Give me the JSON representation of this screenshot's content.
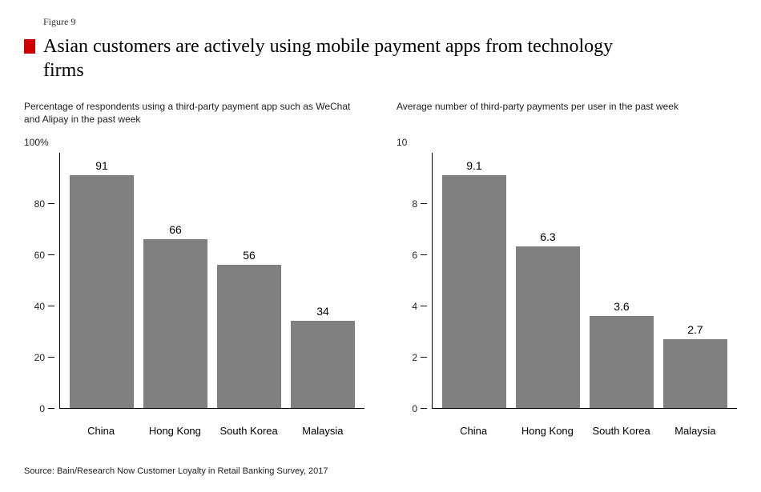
{
  "figure_label": "Figure 9",
  "title": "Asian customers are actively using mobile payment apps from technology firms",
  "flag_color": "#cc0000",
  "bar_color": "#808080",
  "axis_color": "#000000",
  "background_color": "#ffffff",
  "font_family_body": "Arial, Helvetica, sans-serif",
  "font_family_title": "Georgia, serif",
  "left_chart": {
    "type": "bar",
    "subtitle": "Percentage of respondents using a third-party payment app such as WeChat and Alipay in the past week",
    "y_max_label": "100%",
    "y_max": 100,
    "y_ticks": [
      0,
      20,
      40,
      60,
      80
    ],
    "categories": [
      "China",
      "Hong Kong",
      "South Korea",
      "Malaysia"
    ],
    "values": [
      91,
      66,
      56,
      34
    ],
    "value_labels": [
      "91",
      "66",
      "56",
      "34"
    ]
  },
  "right_chart": {
    "type": "bar",
    "subtitle": "Average number of third-party payments per user in the past week",
    "y_max_label": "10",
    "y_max": 10,
    "y_ticks": [
      0,
      2,
      4,
      6,
      8
    ],
    "categories": [
      "China",
      "Hong Kong",
      "South Korea",
      "Malaysia"
    ],
    "values": [
      9.1,
      6.3,
      3.6,
      2.7
    ],
    "value_labels": [
      "9.1",
      "6.3",
      "3.6",
      "2.7"
    ]
  },
  "source": "Source: Bain/Research Now Customer Loyalty in Retail Banking Survey, 2017"
}
